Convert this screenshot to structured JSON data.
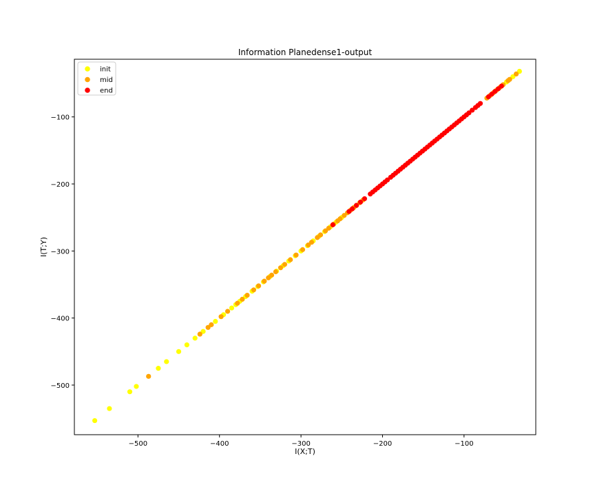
{
  "chart_data": {
    "type": "scatter",
    "title": "Information Planedense1-output",
    "xlabel": "I(X;T)",
    "ylabel": "I(T;Y)",
    "xlim": [
      -578,
      -12
    ],
    "ylim": [
      -574,
      -14
    ],
    "x_ticks": [
      -500,
      -400,
      -300,
      -200,
      -100
    ],
    "x_tick_labels": [
      "−500",
      "−400",
      "−300",
      "−200",
      "−100"
    ],
    "y_ticks": [
      -100,
      -200,
      -300,
      -400,
      -500
    ],
    "y_tick_labels": [
      "−100",
      "−200",
      "−300",
      "−400",
      "−500"
    ],
    "grid": false,
    "legend_position": "top-left",
    "series": [
      {
        "name": "init",
        "color": "#ffff00",
        "x": [
          -553,
          -535,
          -510,
          -502,
          -475,
          -465,
          -450,
          -440,
          -430,
          -420,
          -405,
          -395,
          -385,
          -380,
          -375,
          -368,
          -360,
          -353,
          -346,
          -338,
          -330,
          -322,
          -315,
          -307,
          -300,
          -292,
          -285,
          -278,
          -271,
          -264,
          -257,
          -250,
          -48,
          -40,
          -32
        ],
        "y": [
          -553,
          -535,
          -510,
          -502,
          -475,
          -465,
          -450,
          -440,
          -430,
          -420,
          -405,
          -395,
          -385,
          -380,
          -375,
          -368,
          -360,
          -353,
          -346,
          -338,
          -330,
          -322,
          -315,
          -307,
          -300,
          -292,
          -285,
          -278,
          -271,
          -264,
          -257,
          -250,
          -48,
          -40,
          -32
        ]
      },
      {
        "name": "mid",
        "color": "#ffa500",
        "x": [
          -487,
          -424,
          -414,
          -410,
          -398,
          -390,
          -378,
          -372,
          -366,
          -358,
          -352,
          -345,
          -340,
          -336,
          -331,
          -325,
          -320,
          -313,
          -306,
          -298,
          -291,
          -287,
          -280,
          -276,
          -270,
          -266,
          -260,
          -255,
          -252,
          -247,
          -243,
          -239,
          -235,
          -232,
          -228,
          -224,
          -72,
          -68,
          -64,
          -60,
          -56,
          -52,
          -46,
          -44,
          -36
        ],
        "y": [
          -487,
          -424,
          -414,
          -410,
          -398,
          -390,
          -378,
          -372,
          -366,
          -358,
          -352,
          -345,
          -340,
          -336,
          -331,
          -325,
          -320,
          -313,
          -306,
          -298,
          -291,
          -287,
          -280,
          -276,
          -270,
          -266,
          -260,
          -255,
          -252,
          -247,
          -243,
          -239,
          -235,
          -232,
          -228,
          -224,
          -72,
          -68,
          -64,
          -60,
          -56,
          -52,
          -46,
          -44,
          -36
        ]
      },
      {
        "name": "end",
        "color": "#ff0000",
        "x": [
          -261,
          -241,
          -237,
          -232,
          -227,
          -222,
          -215,
          -212,
          -209,
          -206,
          -203,
          -200,
          -197,
          -194,
          -190,
          -187,
          -184,
          -181,
          -178,
          -175,
          -172,
          -169,
          -166,
          -163,
          -160,
          -157,
          -154,
          -151,
          -148,
          -145,
          -142,
          -139,
          -136,
          -133,
          -130,
          -127,
          -124,
          -121,
          -118,
          -115,
          -112,
          -109,
          -106,
          -103,
          -100,
          -97,
          -94,
          -90,
          -86,
          -83,
          -80,
          -70,
          -66,
          -62,
          -58,
          -54
        ],
        "y": [
          -261,
          -241,
          -237,
          -232,
          -227,
          -222,
          -215,
          -212,
          -209,
          -206,
          -203,
          -200,
          -197,
          -194,
          -190,
          -187,
          -184,
          -181,
          -178,
          -175,
          -172,
          -169,
          -166,
          -163,
          -160,
          -157,
          -154,
          -151,
          -148,
          -145,
          -142,
          -139,
          -136,
          -133,
          -130,
          -127,
          -124,
          -121,
          -118,
          -115,
          -112,
          -109,
          -106,
          -103,
          -100,
          -97,
          -94,
          -90,
          -86,
          -83,
          -80,
          -70,
          -66,
          -62,
          -58,
          -54
        ]
      }
    ]
  }
}
